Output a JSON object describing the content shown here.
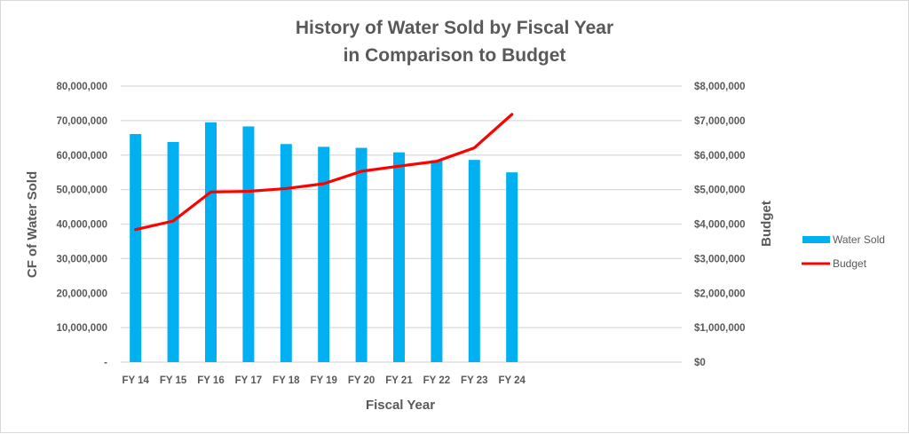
{
  "chart_data": {
    "type": "bar+line",
    "title": [
      "History of Water Sold by Fiscal Year",
      "in Comparison to Budget"
    ],
    "xlabel": "Fiscal Year",
    "ylabel_left": "CF of Water Sold",
    "ylabel_right": "Budget",
    "categories": [
      "FY 14",
      "FY 15",
      "FY 16",
      "FY 17",
      "FY 18",
      "FY 19",
      "FY 20",
      "FY 21",
      "FY 22",
      "FY 23",
      "FY 24"
    ],
    "ylim_left": [
      0,
      80000000
    ],
    "ylim_right": [
      0,
      8000000
    ],
    "left_ticks": [
      "-",
      "10,000,000",
      "20,000,000",
      "30,000,000",
      "40,000,000",
      "50,000,000",
      "60,000,000",
      "70,000,000",
      "80,000,000"
    ],
    "right_ticks": [
      "$0",
      "$1,000,000",
      "$2,000,000",
      "$3,000,000",
      "$4,000,000",
      "$5,000,000",
      "$6,000,000",
      "$7,000,000",
      "$8,000,000"
    ],
    "grid": true,
    "legend_position": "right",
    "series": [
      {
        "name": "Water Sold",
        "type": "bar",
        "axis": "left",
        "color": "#00b0f0",
        "values": [
          66100000,
          63800000,
          69500000,
          68300000,
          63200000,
          62400000,
          62100000,
          60800000,
          58500000,
          58600000,
          55000000
        ]
      },
      {
        "name": "Budget",
        "type": "line",
        "axis": "right",
        "color": "#ff0000",
        "values": [
          3840000,
          4090000,
          4930000,
          4950000,
          5030000,
          5170000,
          5530000,
          5680000,
          5820000,
          6210000,
          7180000
        ]
      }
    ]
  }
}
